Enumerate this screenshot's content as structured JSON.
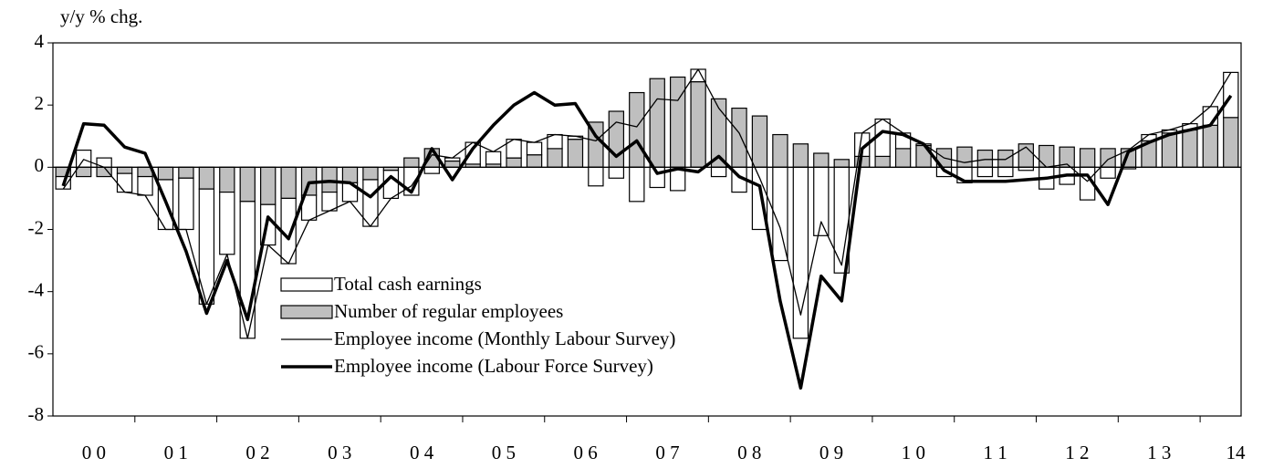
{
  "chart_data": {
    "type": "bar",
    "y_axis_label": "y/y % chg.",
    "categories": [
      "0 0",
      null,
      null,
      null,
      "0 1",
      null,
      null,
      null,
      "0 2",
      null,
      null,
      null,
      "0 3",
      null,
      null,
      null,
      "0 4",
      null,
      null,
      null,
      "0 5",
      null,
      null,
      null,
      "0 6",
      null,
      null,
      null,
      "0 7",
      null,
      null,
      null,
      "0 8",
      null,
      null,
      null,
      "0 9",
      null,
      null,
      null,
      "1 0",
      null,
      null,
      null,
      "1 1",
      null,
      null,
      null,
      "1 2",
      null,
      null,
      null,
      "1 3",
      null,
      null,
      null,
      "14",
      null
    ],
    "ylim": [
      -8,
      4
    ],
    "yticks": [
      -8,
      -6,
      -4,
      -2,
      0,
      2,
      4
    ],
    "series": [
      {
        "name": "Total cash earnings",
        "kind": "bar",
        "color": "#ffffff",
        "values": [
          -0.4,
          0.55,
          0.3,
          -0.6,
          -0.6,
          -1.6,
          -1.65,
          -3.7,
          -2.0,
          -4.4,
          -1.3,
          -2.1,
          -0.8,
          -0.6,
          -0.6,
          -1.5,
          -0.9,
          -0.9,
          -0.2,
          0.1,
          0.7,
          0.4,
          0.6,
          0.4,
          0.45,
          0.1,
          -0.6,
          -0.35,
          -1.1,
          -0.65,
          -0.75,
          0.4,
          -0.3,
          -0.8,
          -2.0,
          -3.0,
          -5.5,
          -2.2,
          -3.4,
          0.75,
          1.2,
          0.5,
          0.05,
          -0.3,
          -0.5,
          -0.3,
          -0.3,
          -0.1,
          -0.7,
          -0.55,
          -1.05,
          -0.35,
          -0.05,
          0.2,
          0.1,
          0.2,
          0.6,
          1.45
        ]
      },
      {
        "name": "Number of regular employees",
        "kind": "bar",
        "color": "#bfbfbf",
        "values": [
          -0.3,
          -0.3,
          -0.3,
          -0.2,
          -0.3,
          -0.4,
          -0.35,
          -0.7,
          -0.8,
          -1.1,
          -1.2,
          -1.0,
          -0.9,
          -0.8,
          -0.5,
          -0.4,
          -0.1,
          0.3,
          0.6,
          0.2,
          0.1,
          0.1,
          0.3,
          0.4,
          0.6,
          0.9,
          1.45,
          1.8,
          2.4,
          2.85,
          2.9,
          2.75,
          2.2,
          1.9,
          1.65,
          1.05,
          0.75,
          0.45,
          0.25,
          0.35,
          0.35,
          0.6,
          0.7,
          0.6,
          0.65,
          0.55,
          0.55,
          0.75,
          0.7,
          0.65,
          0.6,
          0.6,
          0.6,
          0.85,
          1.1,
          1.2,
          1.35,
          1.6
        ]
      },
      {
        "name": "Employee income (Monthly Labour Survey)",
        "kind": "line",
        "color": "#000000",
        "width": 1.3,
        "values": [
          -0.7,
          0.25,
          0.0,
          -0.8,
          -0.9,
          -2.0,
          -2.0,
          -4.4,
          -2.8,
          -5.5,
          -2.5,
          -3.1,
          -1.7,
          -1.4,
          -1.1,
          -1.9,
          -1.0,
          -0.6,
          0.4,
          0.3,
          0.8,
          0.5,
          0.9,
          0.8,
          1.05,
          1.0,
          0.85,
          1.45,
          1.3,
          2.2,
          2.15,
          3.15,
          1.9,
          1.1,
          -0.35,
          -1.95,
          -4.75,
          -1.75,
          -3.15,
          1.1,
          1.55,
          1.1,
          0.75,
          0.3,
          0.15,
          0.25,
          0.25,
          0.65,
          0.0,
          0.1,
          -0.45,
          0.25,
          0.55,
          1.05,
          1.2,
          1.4,
          1.95,
          3.05
        ]
      },
      {
        "name": "Employee income (Labour Force Survey)",
        "kind": "line",
        "color": "#000000",
        "width": 3.5,
        "values": [
          -0.6,
          1.4,
          1.35,
          0.65,
          0.45,
          -1.1,
          -2.7,
          -4.7,
          -3.0,
          -4.9,
          -1.6,
          -2.3,
          -0.5,
          -0.45,
          -0.5,
          -0.95,
          -0.3,
          -0.8,
          0.6,
          -0.4,
          0.6,
          1.35,
          2.0,
          2.4,
          2.0,
          2.05,
          1.0,
          0.35,
          0.85,
          -0.2,
          -0.05,
          -0.15,
          0.35,
          -0.3,
          -0.6,
          -4.3,
          -7.1,
          -3.5,
          -4.3,
          0.6,
          1.15,
          1.05,
          0.75,
          -0.1,
          -0.45,
          -0.45,
          -0.45,
          -0.4,
          -0.35,
          -0.25,
          -0.25,
          -1.2,
          0.5,
          0.8,
          1.05,
          1.2,
          1.35,
          2.3
        ]
      }
    ]
  }
}
